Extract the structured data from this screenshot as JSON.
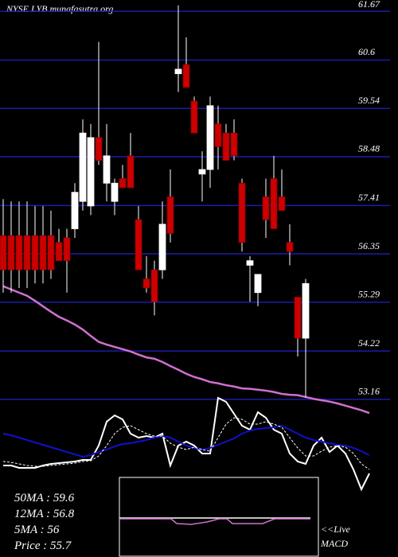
{
  "chart_data": [
    {
      "type": "candlestick",
      "title": "NYSE LYB munafasutra.org",
      "open": [
        56.75,
        56.75,
        56.75,
        56.75,
        56.75,
        56.75,
        56.75,
        56.6,
        56.7,
        56.9,
        57.5,
        57.4,
        58.9,
        57.9,
        57.5,
        58.0,
        58.5,
        57.1,
        55.8,
        56.0,
        56.0,
        57.6,
        60.3,
        60.5,
        59.7,
        58.1,
        58.2,
        59.2,
        59.0,
        59.0,
        57.9,
        56.1,
        55.5,
        57.6,
        58.0,
        57.6,
        56.6,
        55.4,
        54.5
      ],
      "high": [
        57.55,
        57.5,
        57.5,
        57.5,
        57.4,
        57.4,
        57.3,
        56.9,
        56.9,
        57.9,
        59.3,
        59.2,
        61.0,
        59.2,
        58.0,
        58.3,
        59.0,
        57.4,
        56.3,
        56.2,
        57.5,
        58.2,
        61.8,
        61.1,
        59.8,
        58.6,
        59.8,
        59.6,
        59.2,
        59.3,
        58.0,
        56.3,
        55.9,
        58.0,
        58.5,
        58.2,
        57.0,
        55.4,
        55.8
      ],
      "low": [
        55.5,
        55.5,
        55.6,
        55.6,
        55.7,
        55.7,
        55.8,
        56.2,
        55.5,
        56.7,
        57.3,
        57.2,
        58.3,
        57.5,
        57.2,
        57.8,
        57.8,
        56.0,
        55.5,
        55.0,
        55.8,
        56.6,
        59.9,
        60.0,
        59.0,
        57.5,
        57.8,
        58.2,
        58.4,
        58.4,
        56.4,
        55.3,
        55.2,
        56.7,
        56.9,
        57.3,
        56.1,
        54.1,
        53.2
      ],
      "close": [
        56.0,
        56.0,
        56.0,
        56.0,
        56.0,
        56.0,
        56.0,
        56.2,
        56.2,
        57.7,
        59.0,
        58.9,
        58.4,
        58.5,
        57.9,
        57.8,
        57.8,
        56.0,
        55.6,
        55.3,
        57.0,
        56.8,
        60.4,
        60.0,
        59.0,
        58.2,
        59.6,
        58.7,
        58.4,
        58.5,
        56.6,
        56.2,
        55.9,
        57.1,
        56.9,
        57.3,
        56.4,
        54.5,
        55.7
      ],
      "up_color": "#ffffff",
      "down_color": "#cc0000",
      "ma_values": [
        55.64,
        55.57,
        55.5,
        55.43,
        55.32,
        55.2,
        55.08,
        54.97,
        54.89,
        54.8,
        54.69,
        54.55,
        54.42,
        54.36,
        54.31,
        54.26,
        54.21,
        54.14,
        54.08,
        54.05,
        53.98,
        53.89,
        53.81,
        53.72,
        53.65,
        53.6,
        53.54,
        53.51,
        53.47,
        53.44,
        53.4,
        53.39,
        53.37,
        53.35,
        53.32,
        53.28,
        53.26,
        53.25,
        53.21,
        53.17,
        53.14,
        53.11,
        53.07,
        53.02,
        52.97,
        52.92,
        52.86
      ],
      "ma_color": "#d070d0",
      "ylim": [
        53.0,
        61.9
      ],
      "yticks": [
        61.67,
        60.6,
        59.54,
        58.48,
        57.41,
        56.35,
        55.29,
        54.22,
        53.16
      ],
      "grid": true,
      "grid_color": "#1c1ca8"
    },
    {
      "type": "line",
      "ylim": [
        -30,
        100
      ],
      "series": [
        {
          "color": "#ffffff",
          "dashed": false,
          "values": [
            10,
            10,
            7,
            7,
            7,
            10,
            12,
            13,
            14,
            15,
            17,
            17,
            35,
            65,
            73,
            68,
            50,
            45,
            47,
            45,
            50,
            10,
            35,
            40,
            35,
            25,
            25,
            95,
            90,
            75,
            60,
            55,
            77,
            70,
            55,
            50,
            25,
            15,
            12,
            35,
            45,
            27,
            35,
            25,
            5,
            -20,
            0
          ]
        },
        {
          "color": "#1010cc",
          "dashed": false,
          "values": [
            50,
            48,
            45,
            42,
            39,
            36,
            33,
            30,
            27,
            24,
            21,
            23,
            27,
            30,
            34,
            37,
            38,
            40,
            42,
            45,
            47,
            45,
            40,
            35,
            32,
            30,
            32,
            36,
            40,
            44,
            50,
            54,
            56,
            57,
            58,
            60,
            55,
            50,
            45,
            42,
            40,
            38,
            36,
            35,
            32,
            28,
            23
          ]
        },
        {
          "color": "#ffffff",
          "dashed": true,
          "values": [
            15,
            14,
            12,
            10,
            9,
            9,
            10,
            11,
            12,
            13,
            15,
            16,
            22,
            35,
            50,
            58,
            60,
            55,
            50,
            47,
            47,
            38,
            33,
            30,
            33,
            30,
            28,
            45,
            62,
            70,
            68,
            62,
            62,
            65,
            62,
            58,
            45,
            32,
            22,
            22,
            28,
            33,
            35,
            33,
            25,
            12,
            5
          ]
        }
      ]
    }
  ],
  "stats": [
    {
      "label": "50MA",
      "value": "59.6"
    },
    {
      "label": "12MA",
      "value": "56.8"
    },
    {
      "label": "5MA",
      "value": "56"
    },
    {
      "label": "Price",
      "value": "55.7"
    }
  ],
  "macd_label": "<<Live",
  "macd_title": "MACD"
}
